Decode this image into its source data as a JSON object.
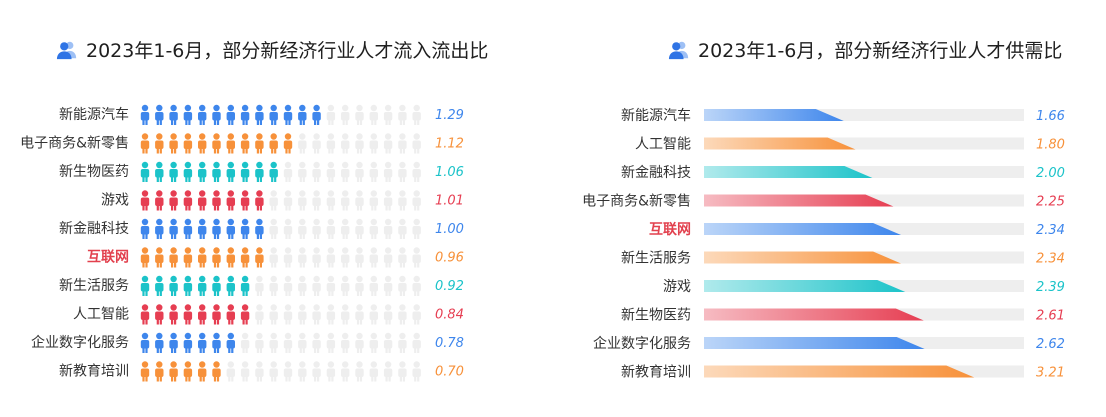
{
  "left_title": "2023年1-6月，部分新经济行业人才流入流出比",
  "right_title": "2023年1-6月，部分新经济行业人才供需比",
  "colors": {
    "blue": "#3e86ec",
    "orange": "#f7913a",
    "teal": "#1cc3c9",
    "red": "#e63e52",
    "grey": "#eeeeee",
    "highlight_label": "#e2414e"
  },
  "icons": {
    "title_icon": "users-icon",
    "person_icon": "person-icon"
  },
  "chart_data": [
    {
      "type": "bar",
      "title": "2023年1-6月，部分新经济行业人才流入流出比",
      "style": "pictograph",
      "categories": [
        "新能源汽车",
        "电子商务&新零售",
        "新生物医药",
        "游戏",
        "新金融科技",
        "互联网",
        "新生活服务",
        "人工智能",
        "企业数字化服务",
        "新教育培训"
      ],
      "values": [
        1.29,
        1.12,
        1.06,
        1.01,
        1.0,
        0.96,
        0.92,
        0.84,
        0.78,
        0.7
      ],
      "value_labels": [
        "1.29",
        "1.12",
        "1.06",
        "1.01",
        "1.00",
        "0.96",
        "0.92",
        "0.84",
        "0.78",
        "0.70"
      ],
      "filled_icons": [
        13,
        11,
        10,
        9,
        9,
        9,
        8,
        8,
        7,
        6
      ],
      "total_icons": 20,
      "colors": [
        "blue",
        "orange",
        "teal",
        "red",
        "blue",
        "orange",
        "teal",
        "red",
        "blue",
        "orange"
      ],
      "highlight": "互联网"
    },
    {
      "type": "bar",
      "title": "2023年1-6月，部分新经济行业人才供需比",
      "style": "horizontal-wedge",
      "categories": [
        "新能源汽车",
        "人工智能",
        "新金融科技",
        "电子商务&新零售",
        "互联网",
        "新生活服务",
        "游戏",
        "新生物医药",
        "企业数字化服务",
        "新教育培训"
      ],
      "values": [
        1.66,
        1.8,
        2.0,
        2.25,
        2.34,
        2.34,
        2.39,
        2.61,
        2.62,
        3.21
      ],
      "value_labels": [
        "1.66",
        "1.80",
        "2.00",
        "2.25",
        "2.34",
        "2.34",
        "2.39",
        "2.61",
        "2.62",
        "3.21"
      ],
      "xlim": [
        0,
        3.8
      ],
      "colors": [
        "blue",
        "orange",
        "teal",
        "red",
        "blue",
        "orange",
        "teal",
        "red",
        "blue",
        "orange"
      ],
      "highlight": "互联网"
    }
  ]
}
